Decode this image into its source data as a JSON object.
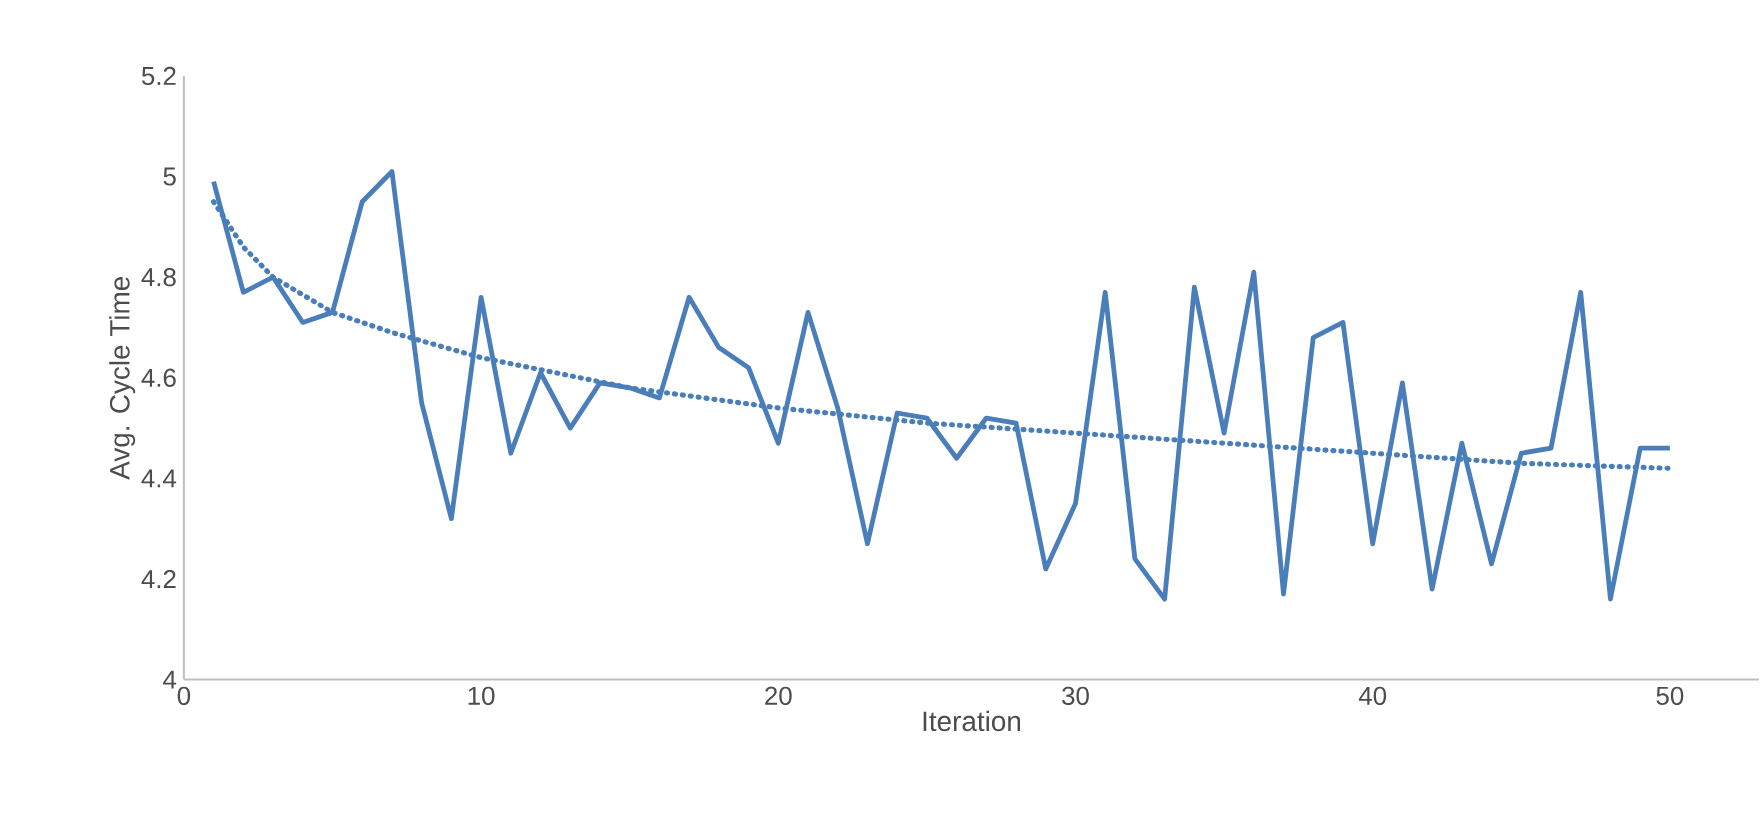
{
  "chart_data": {
    "type": "line",
    "xlabel": "Iteration",
    "ylabel": "Avg. Cycle Time",
    "x": [
      1,
      2,
      3,
      4,
      5,
      6,
      7,
      8,
      9,
      10,
      11,
      12,
      13,
      14,
      15,
      16,
      17,
      18,
      19,
      20,
      21,
      22,
      23,
      24,
      25,
      26,
      27,
      28,
      29,
      30,
      31,
      32,
      33,
      34,
      35,
      36,
      37,
      38,
      39,
      40,
      41,
      42,
      43,
      44,
      45,
      46,
      47,
      48,
      49,
      50
    ],
    "series": [
      {
        "color": "#4a7ebb",
        "line_style": "solid",
        "values": [
          4.99,
          4.77,
          4.8,
          4.71,
          4.73,
          4.95,
          5.01,
          4.55,
          4.32,
          4.76,
          4.45,
          4.61,
          4.5,
          4.59,
          4.58,
          4.56,
          4.76,
          4.66,
          4.62,
          4.47,
          4.73,
          4.54,
          4.27,
          4.53,
          4.52,
          4.44,
          4.52,
          4.51,
          4.22,
          4.35,
          4.77,
          4.24,
          4.16,
          4.78,
          4.49,
          4.81,
          4.17,
          4.68,
          4.71,
          4.27,
          4.59,
          4.18,
          4.47,
          4.23,
          4.45,
          4.46,
          4.77,
          4.16,
          4.46,
          4.46
        ]
      },
      {
        "type": "line",
        "color": "#4a7ebb",
        "line_style": "dotted",
        "x": [
          1,
          2,
          3,
          5,
          7,
          10,
          15,
          20,
          25,
          30,
          35,
          40,
          45,
          50
        ],
        "values": [
          4.95,
          4.86,
          4.8,
          4.73,
          4.69,
          4.64,
          4.58,
          4.54,
          4.51,
          4.49,
          4.47,
          4.45,
          4.43,
          4.42
        ]
      }
    ],
    "xlim": [
      0,
      53
    ],
    "ylim": [
      4,
      5.2
    ],
    "xticks": [
      0,
      10,
      20,
      30,
      40,
      50
    ],
    "yticks": [
      4,
      4.2,
      4.4,
      4.6,
      4.8,
      5,
      5.2
    ]
  }
}
